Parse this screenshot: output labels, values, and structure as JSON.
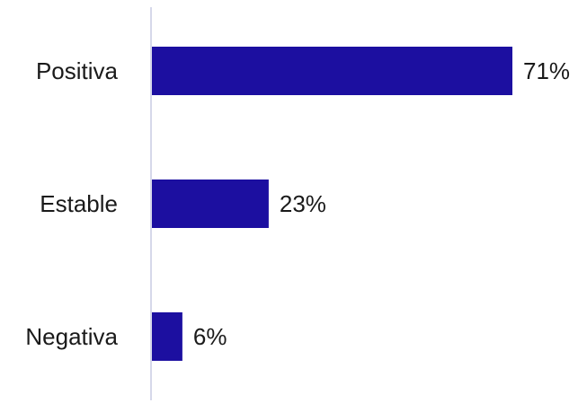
{
  "chart_data": {
    "type": "bar",
    "orientation": "horizontal",
    "categories": [
      "Positiva",
      "Estable",
      "Negativa"
    ],
    "values": [
      71,
      23,
      6
    ],
    "value_labels": [
      "71%",
      "23%",
      "6%"
    ],
    "xlim": [
      0,
      100
    ],
    "grid": false,
    "legend": "none",
    "title": "",
    "xlabel": "",
    "ylabel": ""
  },
  "colors": {
    "bar": "#1c0fa0",
    "axis": "#c9cbe3",
    "text": "#1a1a1a",
    "background": "#ffffff"
  }
}
